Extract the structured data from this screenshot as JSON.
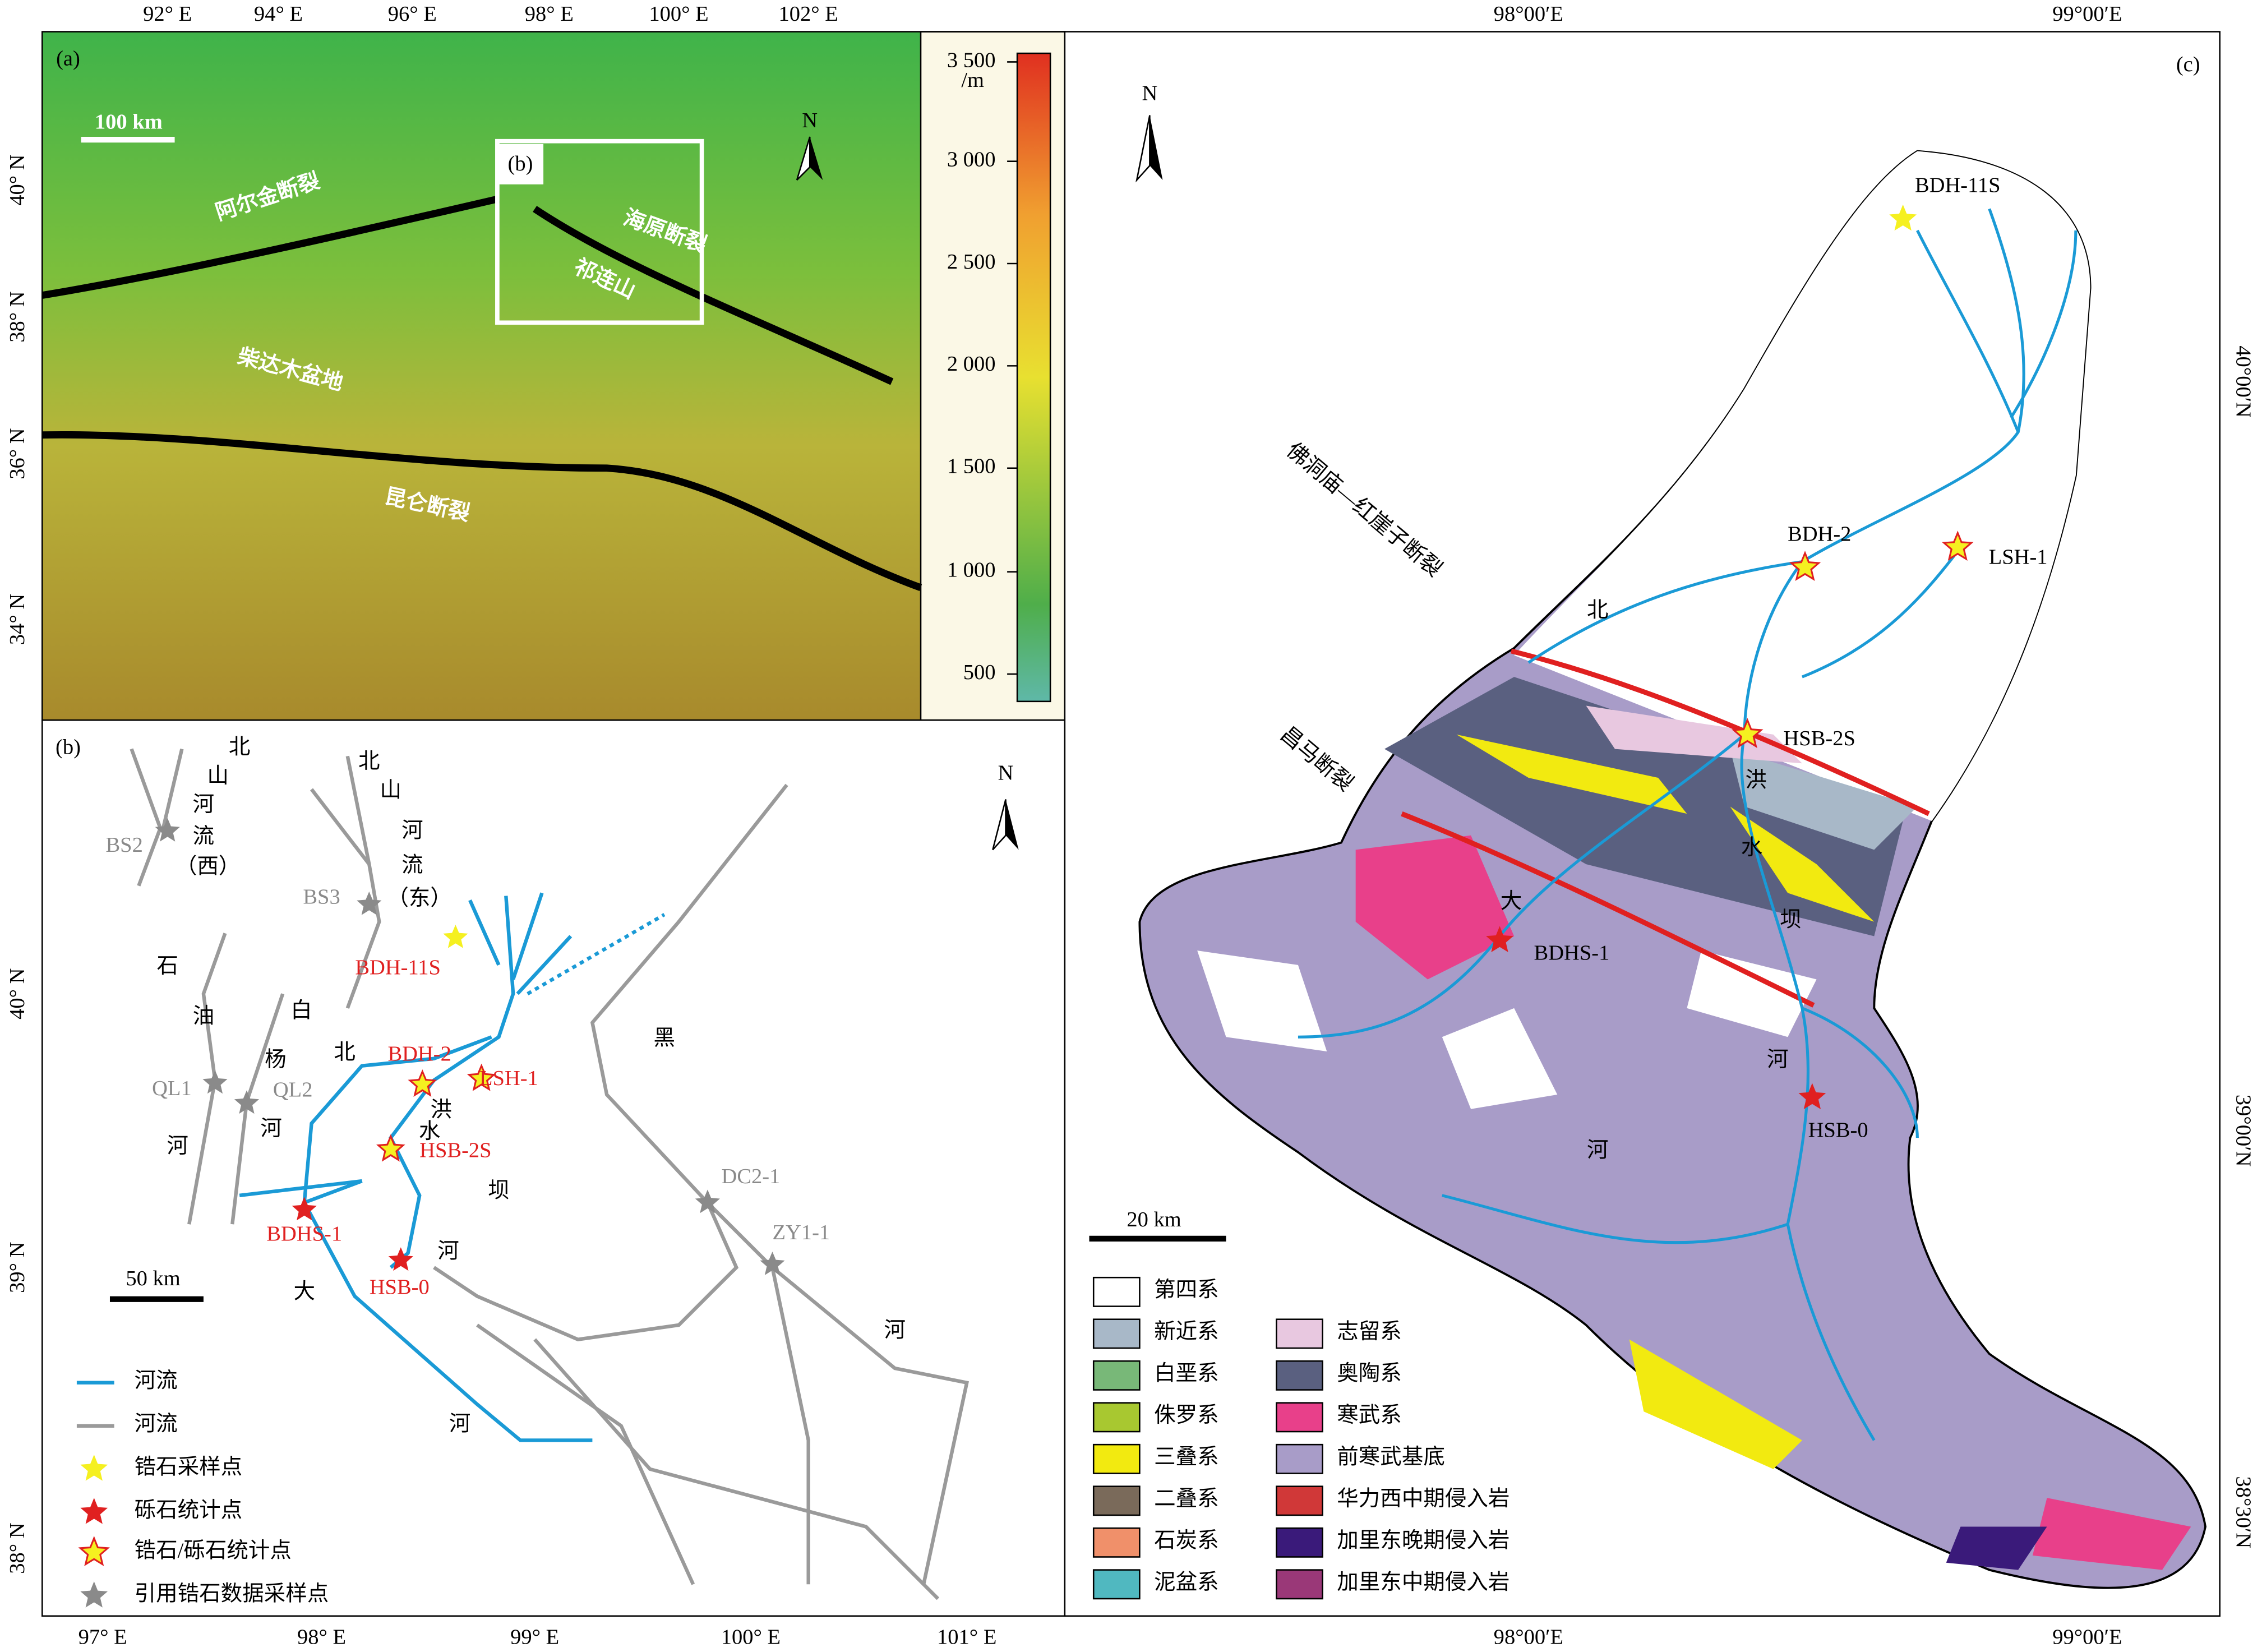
{
  "panel_a": {
    "label": "(a)",
    "lon_ticks": [
      "92° E",
      "94° E",
      "96° E",
      "98° E",
      "100° E",
      "102° E"
    ],
    "lat_ticks": [
      "40° N",
      "38° N",
      "36° N",
      "34° N"
    ],
    "scale_bar": "100 km",
    "north": "N",
    "box_label": "(b)",
    "features": [
      "阿尔金断裂",
      "海原断裂",
      "祁连山",
      "柴达木盆地",
      "昆仑断裂"
    ],
    "colorbar": {
      "unit": "/m",
      "ticks": [
        "3 500",
        "3 000",
        "2 500",
        "2 000",
        "1 500",
        "1 000",
        "500"
      ]
    }
  },
  "panel_b": {
    "label": "(b)",
    "lon_ticks": [
      "97° E",
      "98° E",
      "99° E",
      "100° E",
      "101° E"
    ],
    "lat_ticks": [
      "40° N",
      "39° N",
      "38° N"
    ],
    "scale_bar": "50 km",
    "north": "N",
    "river_labels": [
      "北",
      "山",
      "河",
      "流",
      "（西）",
      "北",
      "山",
      "河",
      "流",
      "（东）",
      "石",
      "油",
      "河",
      "白",
      "杨",
      "河",
      "黑",
      "河",
      "北",
      "洪",
      "水",
      "坝",
      "河",
      "大",
      "河"
    ],
    "cited_samples": [
      "BS2",
      "BS3",
      "QL1",
      "QL2",
      "DC2-1",
      "ZY1-1"
    ],
    "study_samples": [
      "BDH-11S",
      "BDH-2",
      "LSH-1",
      "HSB-2S",
      "BDHS-1",
      "HSB-0"
    ],
    "legend": [
      "河流",
      "河流",
      "锆石采样点",
      "砾石统计点",
      "锆石/砾石统计点",
      "引用锆石数据采样点"
    ]
  },
  "panel_c": {
    "label": "(c)",
    "lon_ticks": [
      "98°00′E",
      "99°00′E"
    ],
    "lat_ticks": [
      "40°00′N",
      "39°00′N",
      "38°30′N"
    ],
    "scale_bar": "20 km",
    "north": "N",
    "fault_labels": [
      "佛洞庙—红崖子断裂",
      "昌马断裂"
    ],
    "river_labels": [
      "北",
      "洪",
      "水",
      "坝",
      "大",
      "河",
      "河"
    ],
    "samples": [
      "BDH-11S",
      "BDH-2",
      "LSH-1",
      "HSB-2S",
      "BDHS-1",
      "HSB-0"
    ],
    "legend": [
      "第四系",
      "新近系",
      "白垩系",
      "侏罗系",
      "三叠系",
      "二叠系",
      "石炭系",
      "泥盆系",
      "志留系",
      "奥陶系",
      "寒武系",
      "前寒武基底",
      "华力西中期侵入岩",
      "加里东晚期侵入岩",
      "加里东中期侵入岩"
    ]
  }
}
